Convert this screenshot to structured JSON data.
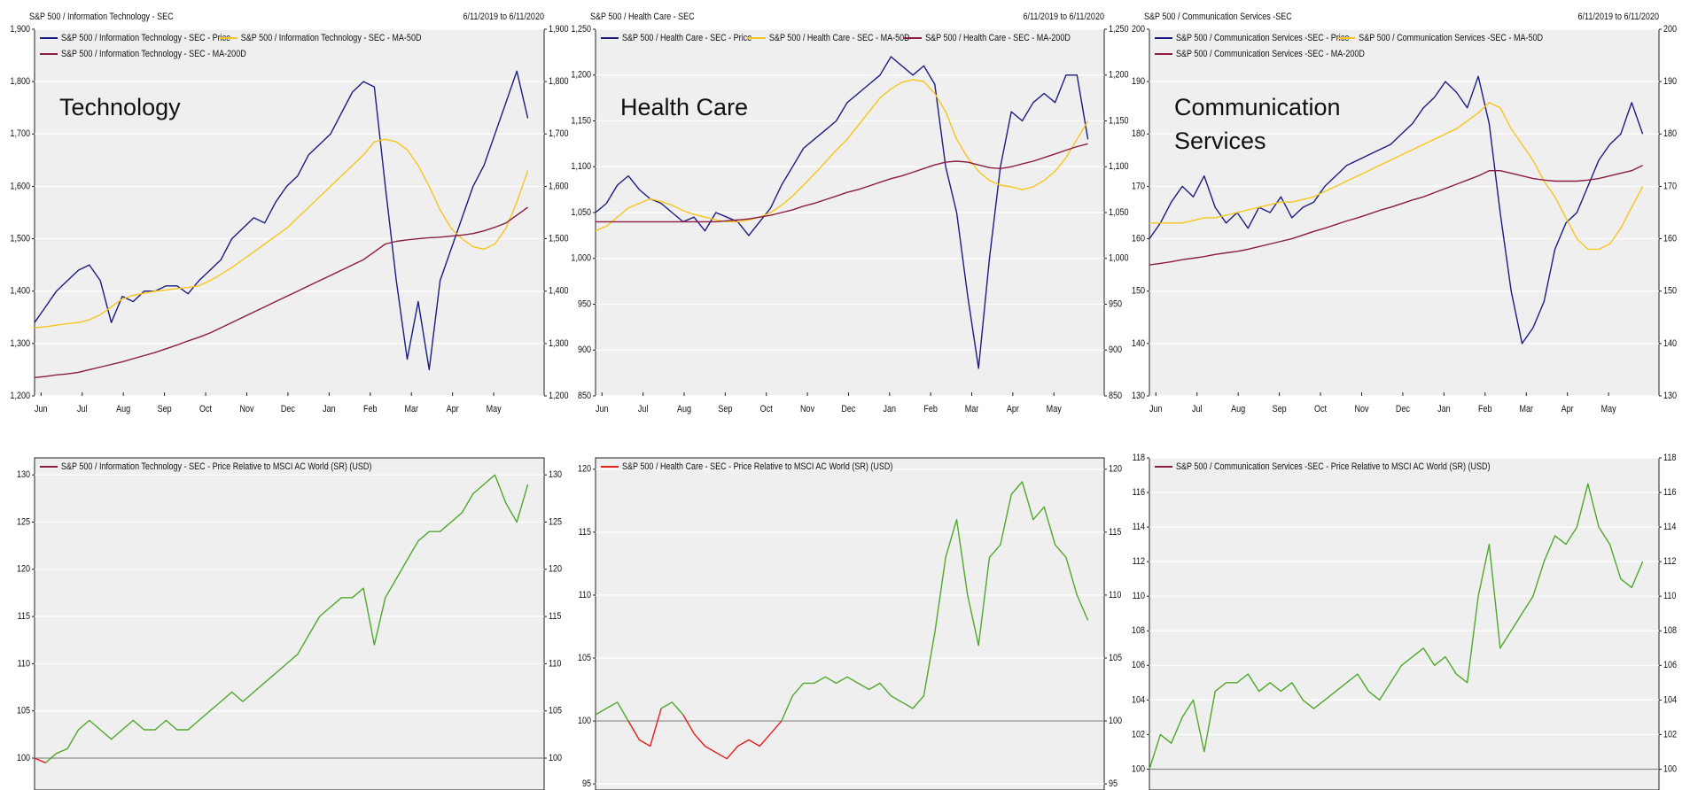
{
  "chart_data": [
    {
      "type": "line",
      "title": "S&P 500 / Information Technology - SEC",
      "subtitle": "6/11/2019 to 6/11/2020",
      "annotation": "Technology",
      "x_tick_labels": [
        "Jun",
        "Jul",
        "Aug",
        "Sep",
        "Oct",
        "Nov",
        "Dec",
        "Jan",
        "Feb",
        "Mar",
        "Apr",
        "May"
      ],
      "ylim": [
        1200,
        1900
      ],
      "yticks": [
        {
          "value": 1200,
          "label": "1,200"
        },
        {
          "value": 1300,
          "label": "1,300"
        },
        {
          "value": 1400,
          "label": "1,400"
        },
        {
          "value": 1500,
          "label": "1,500"
        },
        {
          "value": 1600,
          "label": "1,600"
        },
        {
          "value": 1700,
          "label": "1,700"
        },
        {
          "value": 1800,
          "label": "1,800"
        },
        {
          "value": 1900,
          "label": "1,900"
        }
      ],
      "grid": true,
      "series": [
        {
          "name": "S&P 500 / Information Technology - SEC - Price",
          "color": "#1b1c80",
          "values": [
            1340,
            1370,
            1400,
            1420,
            1440,
            1450,
            1420,
            1340,
            1390,
            1380,
            1400,
            1400,
            1410,
            1410,
            1395,
            1420,
            1440,
            1460,
            1500,
            1520,
            1540,
            1530,
            1570,
            1600,
            1620,
            1660,
            1680,
            1700,
            1740,
            1780,
            1800,
            1790,
            1600,
            1420,
            1270,
            1380,
            1250,
            1420,
            1480,
            1540,
            1600,
            1640,
            1700,
            1760,
            1820,
            1730
          ]
        },
        {
          "name": "S&P 500 / Information Technology - SEC - MA-50D",
          "color": "#f7c51c",
          "values": [
            1330,
            1332,
            1335,
            1338,
            1340,
            1345,
            1355,
            1370,
            1385,
            1392,
            1396,
            1400,
            1402,
            1405,
            1407,
            1410,
            1420,
            1432,
            1445,
            1460,
            1475,
            1490,
            1505,
            1520,
            1540,
            1560,
            1580,
            1600,
            1620,
            1640,
            1660,
            1685,
            1690,
            1685,
            1670,
            1640,
            1600,
            1555,
            1520,
            1500,
            1485,
            1480,
            1490,
            1520,
            1570,
            1630
          ]
        },
        {
          "name": "S&P 500 / Information Technology - SEC - MA-200D",
          "color": "#8b1c40",
          "values": [
            1235,
            1237,
            1240,
            1242,
            1245,
            1250,
            1255,
            1260,
            1265,
            1271,
            1277,
            1283,
            1290,
            1297,
            1305,
            1312,
            1320,
            1330,
            1340,
            1350,
            1360,
            1370,
            1380,
            1390,
            1400,
            1410,
            1420,
            1430,
            1440,
            1450,
            1460,
            1475,
            1490,
            1495,
            1498,
            1500,
            1502,
            1503,
            1505,
            1507,
            1510,
            1515,
            1522,
            1530,
            1545,
            1560
          ]
        }
      ]
    },
    {
      "type": "line",
      "title": "S&P 500 / Health Care - SEC",
      "subtitle": "6/11/2019 to 6/11/2020",
      "annotation": "Health Care",
      "x_tick_labels": [
        "Jun",
        "Jul",
        "Aug",
        "Sep",
        "Oct",
        "Nov",
        "Dec",
        "Jan",
        "Feb",
        "Mar",
        "Apr",
        "May"
      ],
      "ylim": [
        850,
        1250
      ],
      "yticks": [
        850,
        900,
        950,
        {
          "value": 1000,
          "label": "1,000"
        },
        {
          "value": 1050,
          "label": "1,050"
        },
        {
          "value": 1100,
          "label": "1,100"
        },
        {
          "value": 1150,
          "label": "1,150"
        },
        {
          "value": 1200,
          "label": "1,200"
        },
        {
          "value": 1250,
          "label": "1,250"
        }
      ],
      "grid": true,
      "series": [
        {
          "name": "S&P 500 / Health Care - SEC - Price",
          "color": "#1b1c80",
          "values": [
            1050,
            1060,
            1080,
            1090,
            1075,
            1065,
            1060,
            1050,
            1040,
            1045,
            1030,
            1050,
            1045,
            1040,
            1025,
            1040,
            1055,
            1080,
            1100,
            1120,
            1130,
            1140,
            1150,
            1170,
            1180,
            1190,
            1200,
            1220,
            1210,
            1200,
            1210,
            1190,
            1100,
            1050,
            960,
            880,
            1000,
            1100,
            1160,
            1150,
            1170,
            1180,
            1170,
            1200,
            1200,
            1130
          ]
        },
        {
          "name": "S&P 500 / Health Care - SEC - MA-50D",
          "color": "#f7c51c",
          "values": [
            1030,
            1035,
            1045,
            1055,
            1060,
            1065,
            1062,
            1058,
            1052,
            1048,
            1045,
            1042,
            1040,
            1040,
            1042,
            1045,
            1050,
            1058,
            1068,
            1080,
            1092,
            1105,
            1118,
            1130,
            1145,
            1160,
            1175,
            1185,
            1192,
            1195,
            1193,
            1180,
            1160,
            1130,
            1110,
            1095,
            1085,
            1080,
            1078,
            1075,
            1078,
            1085,
            1095,
            1110,
            1130,
            1150
          ]
        },
        {
          "name": "S&P 500 / Health Care - SEC - MA-200D",
          "color": "#8b1c40",
          "values": [
            1040,
            1040,
            1040,
            1040,
            1040,
            1040,
            1040,
            1040,
            1040,
            1040,
            1040,
            1040,
            1041,
            1042,
            1043,
            1045,
            1047,
            1050,
            1053,
            1057,
            1060,
            1064,
            1068,
            1072,
            1075,
            1079,
            1083,
            1087,
            1090,
            1094,
            1098,
            1102,
            1105,
            1106,
            1105,
            1102,
            1099,
            1098,
            1100,
            1103,
            1106,
            1110,
            1114,
            1118,
            1122,
            1125
          ]
        }
      ]
    },
    {
      "type": "line",
      "title": "S&P 500 / Communication Services -SEC",
      "subtitle": "6/11/2019 to 6/11/2020",
      "annotation": "Communication Services",
      "x_tick_labels": [
        "Jun",
        "Jul",
        "Aug",
        "Sep",
        "Oct",
        "Nov",
        "Dec",
        "Jan",
        "Feb",
        "Mar",
        "Apr",
        "May"
      ],
      "ylim": [
        130,
        200
      ],
      "yticks": [
        130,
        140,
        150,
        160,
        170,
        180,
        190,
        200
      ],
      "grid": true,
      "series": [
        {
          "name": "S&P 500 / Communication Services -SEC - Price",
          "color": "#1b1c80",
          "values": [
            160,
            163,
            167,
            170,
            168,
            172,
            166,
            163,
            165,
            162,
            166,
            165,
            168,
            164,
            166,
            167,
            170,
            172,
            174,
            175,
            176,
            177,
            178,
            180,
            182,
            185,
            187,
            190,
            188,
            185,
            191,
            182,
            165,
            150,
            140,
            143,
            148,
            158,
            163,
            165,
            170,
            175,
            178,
            180,
            186,
            180
          ]
        },
        {
          "name": "S&P 500 / Communication Services -SEC - MA-50D",
          "color": "#f7c51c",
          "values": [
            163,
            163,
            163,
            163,
            163.5,
            164,
            164,
            164.5,
            165,
            165.5,
            166,
            166.5,
            167,
            167,
            167.5,
            168,
            169,
            170,
            171,
            172,
            173,
            174,
            175,
            176,
            177,
            178,
            179,
            180,
            181,
            182.5,
            184,
            186,
            185,
            181,
            178,
            175,
            171,
            168,
            164,
            160,
            158,
            158,
            159,
            162,
            166,
            170
          ]
        },
        {
          "name": "S&P 500 / Communication Services -SEC - MA-200D",
          "color": "#8b1c40",
          "values": [
            155,
            155.3,
            155.6,
            156,
            156.3,
            156.6,
            157,
            157.3,
            157.6,
            158,
            158.5,
            159,
            159.5,
            160,
            160.7,
            161.4,
            162,
            162.7,
            163.4,
            164,
            164.7,
            165.4,
            166,
            166.7,
            167.4,
            168,
            168.8,
            169.6,
            170.4,
            171.2,
            172,
            173,
            173,
            172.5,
            172,
            171.5,
            171.2,
            171,
            171,
            171,
            171.2,
            171.5,
            172,
            172.5,
            173,
            174
          ]
        }
      ]
    },
    {
      "type": "line",
      "ylim": [
        97,
        131.8
      ],
      "yticks": [
        100,
        105,
        110,
        115,
        120,
        125,
        130
      ],
      "grid": true,
      "baseline": 100,
      "series": [
        {
          "name": "S&P 500 / Information Technology - SEC - Price Relative to MSCI AC World (SR) (USD)",
          "color": "#4fa82a",
          "below_color": "#e3201c",
          "legend_color": "#8b1c40",
          "values": [
            100,
            99.5,
            100.5,
            101,
            103,
            104,
            103,
            102,
            103,
            104,
            103,
            103,
            104,
            103,
            103,
            104,
            105,
            106,
            107,
            106,
            107,
            108,
            109,
            110,
            111,
            113,
            115,
            116,
            117,
            117,
            118,
            112,
            117,
            119,
            121,
            123,
            124,
            124,
            125,
            126,
            128,
            129,
            130,
            127,
            125,
            129
          ]
        }
      ]
    },
    {
      "type": "line",
      "ylim": [
        94.8,
        120.9
      ],
      "yticks": [
        95,
        100,
        105,
        110,
        115,
        120
      ],
      "grid": true,
      "baseline": 100,
      "series": [
        {
          "name": "S&P 500 / Health Care - SEC - Price Relative to MSCI AC World (SR) (USD)",
          "color": "#4fa82a",
          "below_color": "#e3201c",
          "legend_color": "#e3201c",
          "values": [
            100.5,
            101,
            101.5,
            100,
            98.5,
            98,
            101,
            101.5,
            100.5,
            99,
            98,
            97.5,
            97,
            98,
            98.5,
            98,
            99,
            100,
            102,
            103,
            103,
            103.5,
            103,
            103.5,
            103,
            102.5,
            103,
            102,
            101.5,
            101,
            102,
            107,
            113,
            116,
            110,
            106,
            113,
            114,
            118,
            119,
            116,
            117,
            114,
            113,
            110,
            108
          ]
        }
      ]
    },
    {
      "type": "line",
      "ylim": [
        99,
        118
      ],
      "yticks": [
        100,
        102,
        104,
        106,
        108,
        110,
        112,
        114,
        116,
        118
      ],
      "grid": true,
      "baseline": 100,
      "series": [
        {
          "name": "S&P 500 / Communication Services -SEC - Price Relative to MSCI AC World (SR) (USD)",
          "color": "#4fa82a",
          "below_color": "#e3201c",
          "legend_color": "#8b1c40",
          "values": [
            100,
            102,
            101.5,
            103,
            104,
            101,
            104.5,
            105,
            105,
            105.5,
            104.5,
            105,
            104.5,
            105,
            104,
            103.5,
            104,
            104.5,
            105,
            105.5,
            104.5,
            104,
            105,
            106,
            106.5,
            107,
            106,
            106.5,
            105.5,
            105,
            110,
            113,
            107,
            108,
            109,
            110,
            112,
            113.5,
            113,
            114,
            116.5,
            114,
            113,
            111,
            110.5,
            112
          ]
        }
      ]
    }
  ]
}
